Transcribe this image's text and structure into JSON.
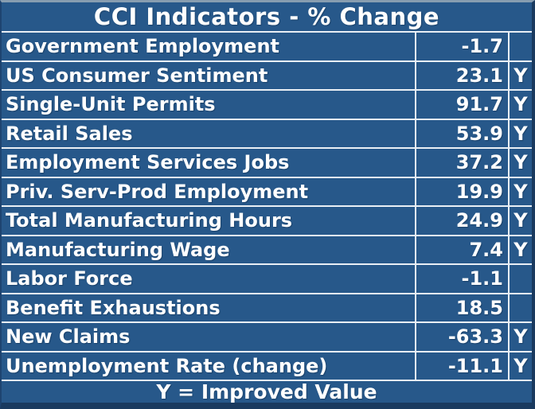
{
  "colors": {
    "cell_background": "#27588A",
    "gridline": "#E9EFF5",
    "text": "#FFFFFF",
    "frame_top": "#879DB0",
    "frame_dark": "#1A3A5F"
  },
  "chart_data": {
    "type": "table",
    "title": "CCI Indicators - % Change",
    "legend": "Y = Improved Value",
    "improved_flag_symbol": "Y",
    "rows": [
      {
        "label": "Government Employment",
        "value": -1.7,
        "improved": ""
      },
      {
        "label": "US Consumer Sentiment",
        "value": 23.1,
        "improved": "Y"
      },
      {
        "label": "Single-Unit Permits",
        "value": 91.7,
        "improved": "Y"
      },
      {
        "label": "Retail Sales",
        "value": 53.9,
        "improved": "Y"
      },
      {
        "label": "Employment Services Jobs",
        "value": 37.2,
        "improved": "Y"
      },
      {
        "label": "Priv. Serv-Prod Employment",
        "value": 19.9,
        "improved": "Y"
      },
      {
        "label": "Total Manufacturing Hours",
        "value": 24.9,
        "improved": "Y"
      },
      {
        "label": "Manufacturing Wage",
        "value": 7.4,
        "improved": "Y"
      },
      {
        "label": "Labor Force",
        "value": -1.1,
        "improved": ""
      },
      {
        "label": "Benefit Exhaustions",
        "value": 18.5,
        "improved": ""
      },
      {
        "label": "New Claims",
        "value": -63.3,
        "improved": "Y"
      },
      {
        "label": "Unemployment Rate (change)",
        "value": -11.1,
        "improved": "Y"
      }
    ]
  }
}
